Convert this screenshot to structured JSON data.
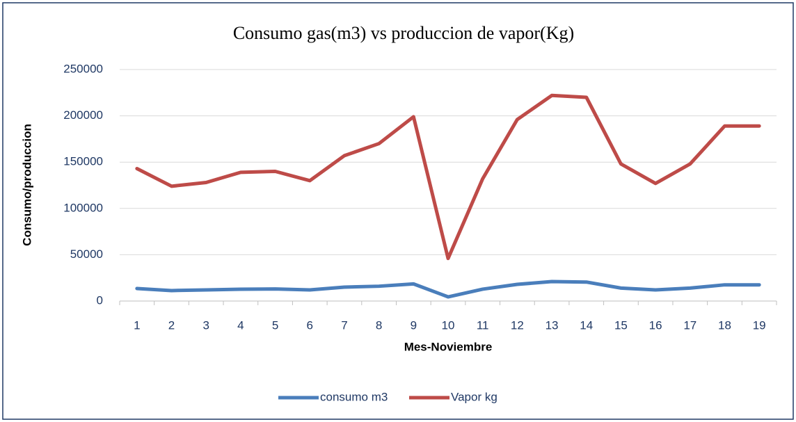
{
  "chart_data": {
    "type": "line",
    "title": "Consumo gas(m3) vs produccion de vapor(Kg)",
    "x_label": "Mes-Noviembre",
    "y_label": "Consumo/produccion",
    "categories": [
      "1",
      "2",
      "3",
      "4",
      "5",
      "6",
      "7",
      "8",
      "9",
      "10",
      "11",
      "12",
      "13",
      "14",
      "15",
      "16",
      "17",
      "18",
      "19"
    ],
    "series": [
      {
        "name": "consumo m3",
        "color": "#4a7ebb",
        "values": [
          13500,
          11300,
          12000,
          12800,
          13000,
          12000,
          15000,
          16000,
          18500,
          4500,
          12800,
          18000,
          21000,
          20500,
          14000,
          12000,
          14000,
          17500,
          17500
        ]
      },
      {
        "name": "Vapor kg",
        "color": "#be4b48",
        "values": [
          143000,
          124000,
          128000,
          139000,
          140000,
          130000,
          157000,
          170000,
          199000,
          46000,
          132000,
          196000,
          222000,
          220000,
          148000,
          127000,
          148000,
          189000,
          189000
        ]
      }
    ],
    "ylim": [
      0,
      250000
    ],
    "yticks": [
      0,
      50000,
      100000,
      150000,
      200000,
      250000
    ],
    "grid": true,
    "legend": "bottom"
  }
}
